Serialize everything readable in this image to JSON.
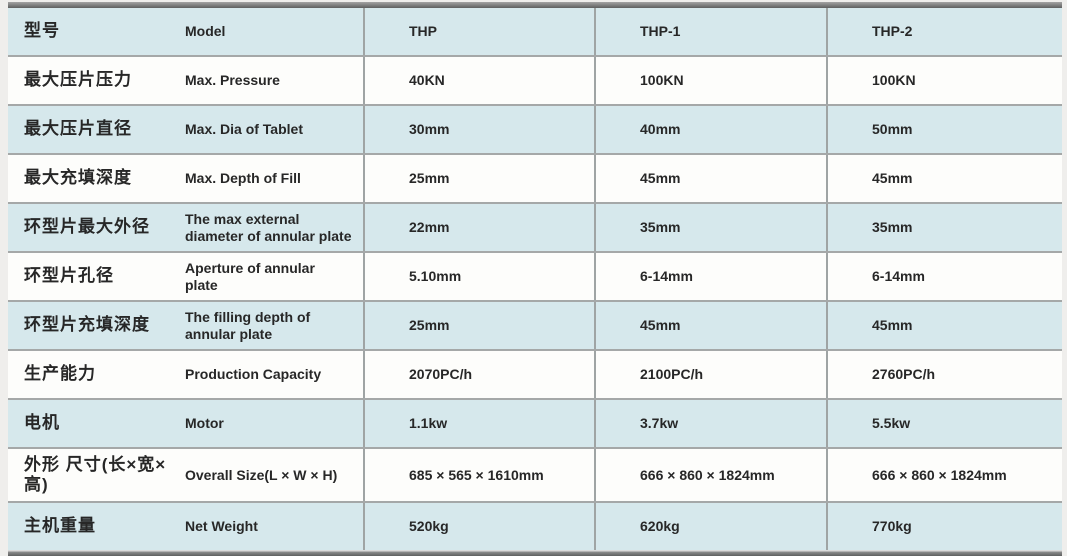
{
  "page": {
    "background": "#efeeec",
    "shaded_row_color": "#d6e8ec",
    "plain_row_color": "#fdfdfb",
    "rule_color": "#a5a8a8",
    "bar_color": "#5e5f5f",
    "text_color": "#272727"
  },
  "table": {
    "header": {
      "cn": "型号",
      "en": "Model",
      "thp": "THP",
      "thp1": "THP-1",
      "thp2": "THP-2"
    },
    "rows": [
      {
        "cn": "最大压片压力",
        "en": "Max. Pressure",
        "thp": "40KN",
        "thp1": "100KN",
        "thp2": "100KN"
      },
      {
        "cn": "最大压片直径",
        "en": "Max. Dia of Tablet",
        "thp": "30mm",
        "thp1": "40mm",
        "thp2": "50mm"
      },
      {
        "cn": "最大充填深度",
        "en": "Max. Depth of Fill",
        "thp": "25mm",
        "thp1": "45mm",
        "thp2": "45mm"
      },
      {
        "cn": "环型片最大外径",
        "en": "The max external\ndiameter of annular plate",
        "thp": "22mm",
        "thp1": "35mm",
        "thp2": "35mm"
      },
      {
        "cn": "环型片孔径",
        "en": "Aperture of annular\nplate",
        "thp": "5.10mm",
        "thp1": "6-14mm",
        "thp2": "6-14mm"
      },
      {
        "cn": "环型片充填深度",
        "en": "The filling depth of\nannular plate",
        "thp": "25mm",
        "thp1": "45mm",
        "thp2": "45mm"
      },
      {
        "cn": "生产能力",
        "en": "Production Capacity",
        "thp": "2070PC/h",
        "thp1": "2100PC/h",
        "thp2": "2760PC/h"
      },
      {
        "cn": "电机",
        "en": "Motor",
        "thp": "1.1kw",
        "thp1": "3.7kw",
        "thp2": "5.5kw"
      },
      {
        "cn": "外形 尺寸(长×宽×高)",
        "en": "Overall Size(L × W × H)",
        "thp": "685 × 565 × 1610mm",
        "thp1": "666 × 860 × 1824mm",
        "thp2": "666 × 860 × 1824mm"
      },
      {
        "cn": "主机重量",
        "en": "Net Weight",
        "thp": "520kg",
        "thp1": "620kg",
        "thp2": "770kg"
      }
    ]
  }
}
